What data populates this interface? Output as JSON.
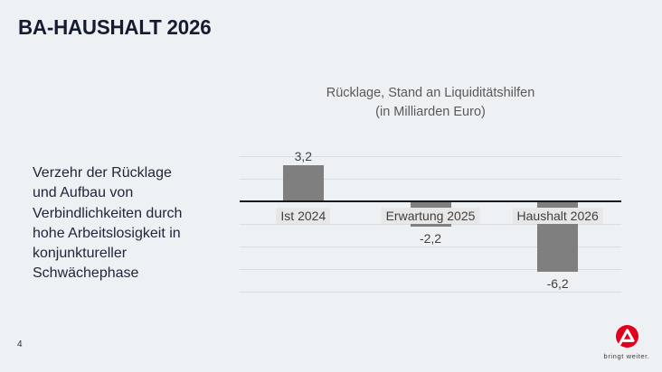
{
  "slide": {
    "title": "BA-HAUSHALT 2026",
    "page_number": "4",
    "side_text": "Verzehr der Rücklage und Aufbau von Verbindlichkeiten durch hohe Arbeitslosigkeit in konjunktureller Schwächephase",
    "side_text_lines": [
      "Verzehr der Rücklage",
      "und Aufbau von",
      "Verbindlichkeiten durch",
      "hohe Arbeitslosigkeit in",
      "konjunktureller",
      "Schwächephase"
    ],
    "logo": {
      "name": "Bundesagentur für Arbeit",
      "tagline": "bringt weiter.",
      "brand_color": "#e2001a"
    }
  },
  "chart_data": {
    "type": "bar",
    "title": "Rücklage, Stand an Liquiditätshilfen",
    "subtitle": "(in Milliarden Euro)",
    "categories": [
      "Ist 2024",
      "Erwartung 2025",
      "Haushalt 2026"
    ],
    "values": [
      3.2,
      -2.2,
      -6.2
    ],
    "value_labels": [
      "3,2",
      "-2,2",
      "-6,2"
    ],
    "ylim": [
      -8,
      4
    ],
    "grid_interval": 2,
    "grid": true,
    "legend": false,
    "bar_color": "#7f7f7f",
    "gridline_color": "#d9dde3",
    "zero_axis_color": "#17191c",
    "category_label_bg": "#e7e7e7",
    "text_color": "#3f3f3f",
    "title_color": "#595959"
  }
}
